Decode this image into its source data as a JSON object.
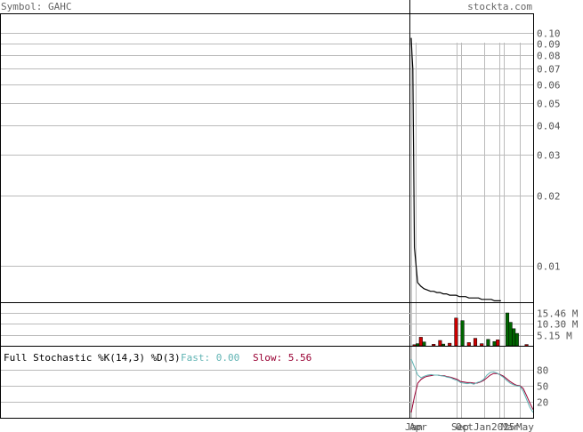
{
  "header": {
    "symbol_label": "Symbol: GAHC",
    "site": "stockta.com"
  },
  "price_panel": {
    "scale": "log",
    "ylim": [
      0.007,
      0.12
    ],
    "tick_labels": [
      "0.10",
      "0.09",
      "0.08",
      "0.07",
      "0.06",
      "0.05",
      "0.04",
      "0.03",
      "0.02",
      "0.01"
    ],
    "tick_values": [
      0.1,
      0.09,
      0.08,
      0.07,
      0.06,
      0.05,
      0.04,
      0.03,
      0.02,
      0.01
    ]
  },
  "volume_panel": {
    "tick_labels": [
      "15.46 M",
      "10.30 M",
      "5.15 M"
    ],
    "tick_values": [
      15.46,
      10.3,
      5.15
    ],
    "ymax": 20.0
  },
  "stochastic_panel": {
    "title": "Full Stochastic %K(14,3) %D(3)",
    "fast_label": "Fast: 0.00",
    "slow_label": "Slow: 5.56",
    "tick_labels": [
      "80",
      "50",
      "20"
    ],
    "tick_values": [
      80,
      50,
      20
    ]
  },
  "x_axis": {
    "labels": [
      "Jan",
      "Apr",
      "Sep",
      "Oct",
      "Jan",
      "2025",
      "Mar",
      "May"
    ]
  },
  "colors": {
    "grid": "#bbbbbb",
    "axis": "#000000",
    "label": "#555555",
    "volume_up": "#006600",
    "volume_down": "#cc0000",
    "fast_line": "#5fb3b3",
    "slow_line": "#990033"
  },
  "chart_data": {
    "type": "line",
    "price": {
      "x": [
        0,
        0.25,
        0.5,
        0.75,
        1.0,
        2,
        3,
        4,
        5,
        6,
        7,
        8,
        9,
        10,
        11,
        12,
        13,
        14,
        15,
        16,
        17,
        18,
        19,
        20,
        21,
        22,
        23,
        24,
        25,
        26,
        27,
        28
      ],
      "y": [
        0.095,
        0.08,
        0.07,
        0.03,
        0.012,
        0.0085,
        0.0082,
        0.008,
        0.0079,
        0.0078,
        0.0078,
        0.0077,
        0.0077,
        0.0076,
        0.0076,
        0.0075,
        0.0075,
        0.0075,
        0.0074,
        0.0074,
        0.0074,
        0.0073,
        0.0073,
        0.0073,
        0.0073,
        0.0072,
        0.0072,
        0.0072,
        0.0072,
        0.0071,
        0.0071,
        0.0071
      ]
    },
    "volume": {
      "series": [
        {
          "name": "up",
          "values": [
            [
              2,
              1.0
            ],
            [
              4,
              1.8
            ],
            [
              10,
              0.8
            ],
            [
              16,
              11.8
            ],
            [
              24,
              3.0
            ],
            [
              26,
              2.0
            ],
            [
              30,
              15.4
            ],
            [
              31,
              11.0
            ],
            [
              32,
              8.0
            ],
            [
              33,
              5.8
            ]
          ]
        },
        {
          "name": "down",
          "values": [
            [
              1,
              0.5
            ],
            [
              3,
              4.0
            ],
            [
              7,
              0.7
            ],
            [
              9,
              2.5
            ],
            [
              12,
              1.2
            ],
            [
              14,
              13.0
            ],
            [
              18,
              1.5
            ],
            [
              20,
              3.5
            ],
            [
              22,
              1.0
            ],
            [
              27,
              2.8
            ],
            [
              36,
              0.6
            ]
          ]
        }
      ]
    },
    "stochastic": {
      "x": [
        0,
        1,
        2,
        3,
        4,
        5,
        6,
        7,
        8,
        9,
        10,
        11,
        12,
        13,
        14,
        15,
        16,
        17,
        18,
        19,
        20,
        21,
        22,
        23,
        24,
        25,
        26,
        27,
        28,
        29,
        30,
        31,
        32,
        33,
        34,
        35,
        36,
        37
      ],
      "fast": [
        100,
        85,
        70,
        65,
        68,
        70,
        71,
        70,
        70,
        69,
        68,
        66,
        65,
        62,
        60,
        56,
        55,
        54,
        55,
        53,
        56,
        58,
        62,
        70,
        75,
        76,
        74,
        70,
        66,
        60,
        55,
        52,
        50,
        49,
        40,
        25,
        10,
        0
      ],
      "slow": [
        0,
        30,
        55,
        62,
        66,
        68,
        69,
        70,
        70,
        69,
        69,
        67,
        66,
        64,
        62,
        58,
        57,
        56,
        56,
        55,
        55,
        57,
        60,
        65,
        70,
        73,
        73,
        71,
        68,
        63,
        58,
        54,
        51,
        50,
        45,
        32,
        18,
        5.56
      ]
    }
  }
}
